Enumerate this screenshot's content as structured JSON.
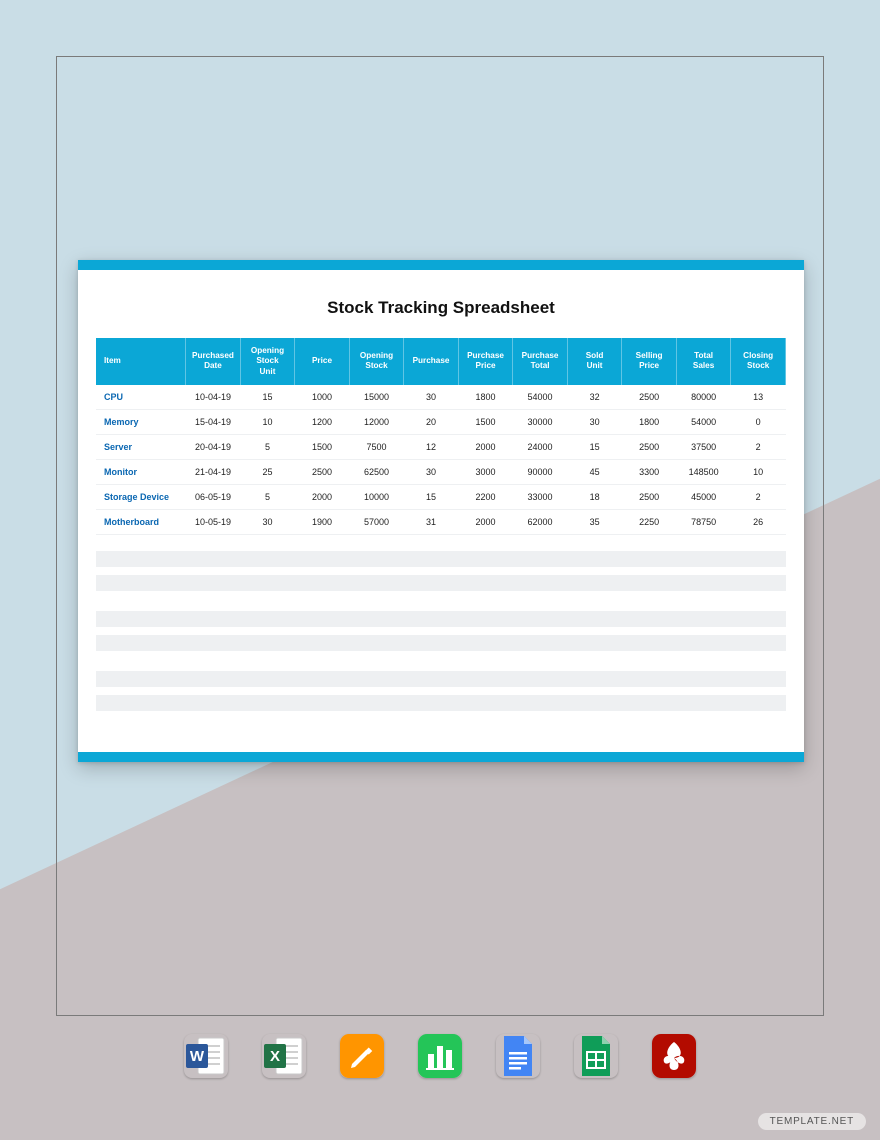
{
  "page": {
    "background_top": "#c9dde6",
    "background_bottom": "#c7c0c2",
    "frame_border": "#7a7a7a"
  },
  "sheet": {
    "title": "Stock Tracking Spreadsheet",
    "accent_color": "#0ba7d6",
    "bg_color": "#ffffff",
    "title_color": "#111111",
    "title_fontsize": 17
  },
  "table": {
    "type": "table",
    "header_bg": "#0ba7d6",
    "header_text_color": "#ffffff",
    "header_fontsize": 8.2,
    "cell_fontsize": 9,
    "item_link_color": "#0a67b2",
    "row_border_color": "#eef0f2",
    "placeholder_bg": "#eef0f2",
    "columns": [
      "Item",
      "Purchased Date",
      "Opening Stock Unit",
      "Price",
      "Opening Stock",
      "Purchase",
      "Purchase Price",
      "Purchase Total",
      "Sold Unit",
      "Selling Price",
      "Total Sales",
      "Closing Stock"
    ],
    "rows": [
      {
        "item": "CPU",
        "purchased_date": "10-04-19",
        "opening_stock_unit": "15",
        "price": "1000",
        "opening_stock": "15000",
        "purchase": "30",
        "purchase_price": "1800",
        "purchase_total": "54000",
        "sold_unit": "32",
        "selling_price": "2500",
        "total_sales": "80000",
        "closing_stock": "13"
      },
      {
        "item": "Memory",
        "purchased_date": "15-04-19",
        "opening_stock_unit": "10",
        "price": "1200",
        "opening_stock": "12000",
        "purchase": "20",
        "purchase_price": "1500",
        "purchase_total": "30000",
        "sold_unit": "30",
        "selling_price": "1800",
        "total_sales": "54000",
        "closing_stock": "0"
      },
      {
        "item": "Server",
        "purchased_date": "20-04-19",
        "opening_stock_unit": "5",
        "price": "1500",
        "opening_stock": "7500",
        "purchase": "12",
        "purchase_price": "2000",
        "purchase_total": "24000",
        "sold_unit": "15",
        "selling_price": "2500",
        "total_sales": "37500",
        "closing_stock": "2"
      },
      {
        "item": "Monitor",
        "purchased_date": "21-04-19",
        "opening_stock_unit": "25",
        "price": "2500",
        "opening_stock": "62500",
        "purchase": "30",
        "purchase_price": "3000",
        "purchase_total": "90000",
        "sold_unit": "45",
        "selling_price": "3300",
        "total_sales": "148500",
        "closing_stock": "10"
      },
      {
        "item": "Storage Device",
        "purchased_date": "06-05-19",
        "opening_stock_unit": "5",
        "price": "2000",
        "opening_stock": "10000",
        "purchase": "15",
        "purchase_price": "2200",
        "purchase_total": "33000",
        "sold_unit": "18",
        "selling_price": "2500",
        "total_sales": "45000",
        "closing_stock": "2"
      },
      {
        "item": "Motherboard",
        "purchased_date": "10-05-19",
        "opening_stock_unit": "30",
        "price": "1900",
        "opening_stock": "57000",
        "purchase": "31",
        "purchase_price": "2000",
        "purchase_total": "62000",
        "sold_unit": "35",
        "selling_price": "2250",
        "total_sales": "78750",
        "closing_stock": "26"
      }
    ]
  },
  "apps": [
    {
      "name": "word",
      "bg": "#2b579a",
      "label": "W"
    },
    {
      "name": "excel",
      "bg": "#217346",
      "label": "X"
    },
    {
      "name": "pages",
      "bg": "#ff9500",
      "label": "✎"
    },
    {
      "name": "numbers",
      "bg": "#24c558",
      "label": "▮"
    },
    {
      "name": "docs",
      "bg": "#4285f4",
      "label": "≣"
    },
    {
      "name": "sheets",
      "bg": "#0f9d58",
      "label": "▦"
    },
    {
      "name": "pdf",
      "bg": "#b30b00",
      "label": "A"
    }
  ],
  "watermark": "TEMPLATE.NET"
}
